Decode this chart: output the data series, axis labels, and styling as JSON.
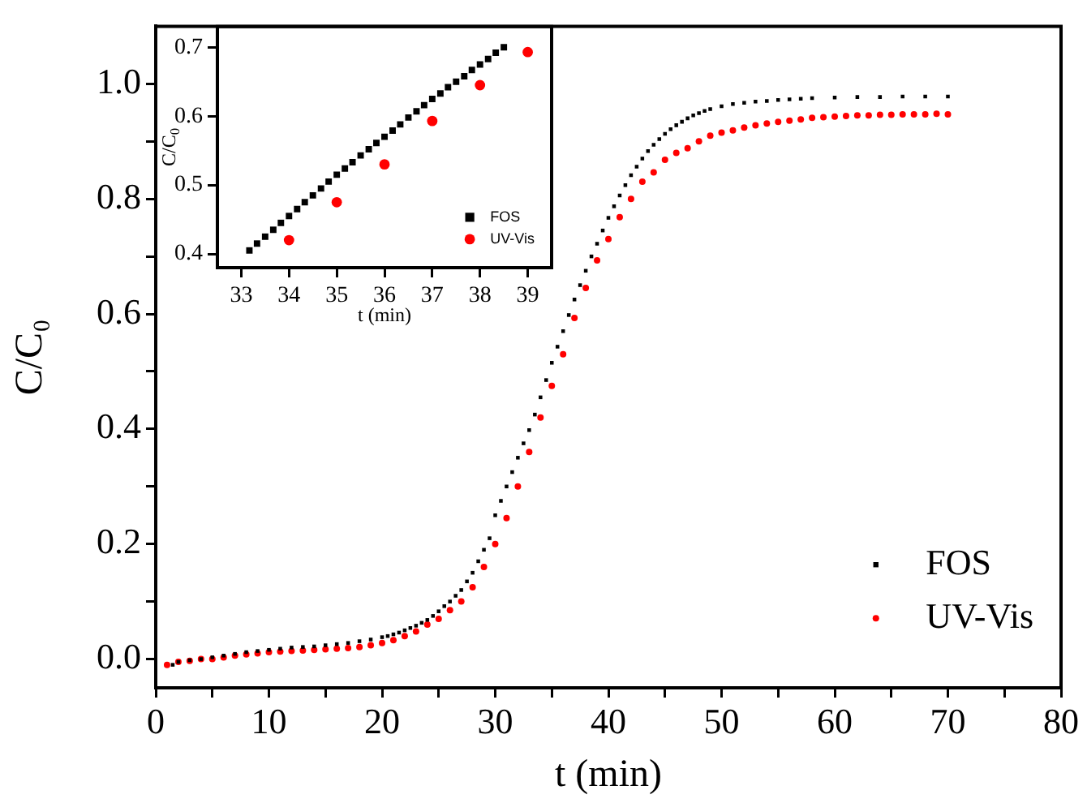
{
  "chart_data": [
    {
      "type": "scatter",
      "xlabel": "t (min)",
      "ylabel": "C/C₀",
      "xlim": [
        0,
        80
      ],
      "ylim": [
        -0.05,
        1.1
      ],
      "xticks": [
        0,
        {
          "value": 5,
          "label": null
        },
        10,
        {
          "value": 15,
          "label": null
        },
        20,
        {
          "value": 25,
          "label": null
        },
        30,
        {
          "value": 35,
          "label": null
        },
        40,
        {
          "value": 45,
          "label": null
        },
        50,
        {
          "value": 55,
          "label": null
        },
        60,
        {
          "value": 65,
          "label": null
        },
        70,
        {
          "value": 75,
          "label": null
        },
        80
      ],
      "yticks": [
        {
          "value": 0,
          "label": "0.0"
        },
        {
          "value": 0.1,
          "label": null
        },
        0.2,
        {
          "value": 0.3,
          "label": null
        },
        0.4,
        {
          "value": 0.5,
          "label": null
        },
        0.6,
        {
          "value": 0.7,
          "label": null
        },
        0.8,
        {
          "value": 0.9,
          "label": null
        },
        {
          "value": 1,
          "label": "1.0"
        }
      ],
      "grid": false,
      "legend": "bottom right",
      "series": [
        {
          "name": "FOS",
          "color": "#000000",
          "marker": "square",
          "x": [
            1.5,
            2,
            3,
            4,
            5,
            6,
            7,
            8,
            9,
            10,
            11,
            12,
            13,
            14,
            15,
            16,
            17,
            18,
            19,
            20,
            20.5,
            21,
            21.5,
            22,
            22.5,
            23,
            23.5,
            24,
            24.5,
            25,
            25.5,
            26,
            26.5,
            27,
            27.5,
            28,
            28.5,
            29,
            29.5,
            30,
            30.5,
            31,
            31.5,
            32,
            32.5,
            33,
            33.5,
            34,
            34.5,
            35,
            35.5,
            36,
            36.5,
            37,
            37.5,
            38,
            38.5,
            39,
            39.5,
            40,
            40.5,
            41,
            41.5,
            42,
            42.5,
            43,
            43.5,
            44,
            44.5,
            45,
            45.5,
            46,
            46.5,
            47,
            47.5,
            48,
            48.5,
            49,
            50,
            51,
            52,
            53,
            54,
            55,
            56,
            57,
            58,
            60,
            62,
            64,
            66,
            68,
            70
          ],
          "values": [
            -0.01,
            -0.005,
            -0.002,
            0,
            0.003,
            0.006,
            0.009,
            0.012,
            0.014,
            0.016,
            0.018,
            0.02,
            0.021,
            0.022,
            0.024,
            0.026,
            0.028,
            0.031,
            0.034,
            0.038,
            0.04,
            0.043,
            0.046,
            0.05,
            0.054,
            0.058,
            0.063,
            0.068,
            0.075,
            0.083,
            0.092,
            0.1,
            0.11,
            0.12,
            0.135,
            0.15,
            0.17,
            0.19,
            0.21,
            0.25,
            0.275,
            0.3,
            0.325,
            0.35,
            0.375,
            0.398,
            0.425,
            0.455,
            0.485,
            0.515,
            0.543,
            0.57,
            0.598,
            0.625,
            0.65,
            0.675,
            0.7,
            0.722,
            0.745,
            0.767,
            0.787,
            0.806,
            0.824,
            0.841,
            0.856,
            0.87,
            0.883,
            0.894,
            0.904,
            0.913,
            0.921,
            0.928,
            0.934,
            0.94,
            0.945,
            0.949,
            0.953,
            0.956,
            0.961,
            0.965,
            0.967,
            0.969,
            0.97,
            0.972,
            0.973,
            0.974,
            0.975,
            0.976,
            0.977,
            0.977,
            0.978,
            0.978,
            0.978
          ]
        },
        {
          "name": "UV-Vis",
          "color": "#ff0000",
          "marker": "circle",
          "x": [
            1,
            2,
            3,
            4,
            5,
            6,
            7,
            8,
            9,
            10,
            11,
            12,
            13,
            14,
            15,
            16,
            17,
            18,
            19,
            20,
            21,
            22,
            23,
            24,
            25,
            26,
            27,
            28,
            29,
            30,
            31,
            32,
            33,
            34,
            35,
            36,
            37,
            38,
            39,
            40,
            41,
            42,
            43,
            44,
            45,
            46,
            47,
            48,
            49,
            50,
            51,
            52,
            53,
            54,
            55,
            56,
            57,
            58,
            59,
            60,
            61,
            62,
            63,
            64,
            65,
            66,
            67,
            68,
            69,
            70
          ],
          "values": [
            -0.01,
            -0.005,
            -0.003,
            0,
            0,
            0.003,
            0.006,
            0.008,
            0.01,
            0.012,
            0.013,
            0.014,
            0.015,
            0.016,
            0.017,
            0.018,
            0.019,
            0.021,
            0.024,
            0.028,
            0.033,
            0.04,
            0.048,
            0.06,
            0.07,
            0.085,
            0.1,
            0.125,
            0.16,
            0.2,
            0.245,
            0.3,
            0.36,
            0.42,
            0.475,
            0.53,
            0.593,
            0.645,
            0.693,
            0.73,
            0.768,
            0.8,
            0.83,
            0.846,
            0.868,
            0.88,
            0.888,
            0.9,
            0.91,
            0.915,
            0.919,
            0.924,
            0.928,
            0.931,
            0.934,
            0.936,
            0.938,
            0.941,
            0.942,
            0.943,
            0.944,
            0.945,
            0.945,
            0.946,
            0.946,
            0.947,
            0.947,
            0.947,
            0.948,
            0.947
          ]
        }
      ]
    },
    {
      "type": "scatter",
      "xlabel": "t (min)",
      "ylabel": "C/C$_{0}$",
      "xlim": [
        32.5,
        39.5
      ],
      "ylim": [
        0.38,
        0.73
      ],
      "xticks": [
        33,
        34,
        35,
        36,
        37,
        38,
        39
      ],
      "yticks": [
        0.4,
        0.5,
        0.6,
        0.7
      ],
      "grid": false,
      "legend": "bottom right",
      "series": [
        {
          "name": "FOS",
          "color": "#000000",
          "marker": "square",
          "x": [
            33.17,
            33.33,
            33.5,
            33.67,
            33.83,
            34,
            34.17,
            34.33,
            34.5,
            34.67,
            34.83,
            35,
            35.17,
            35.33,
            35.5,
            35.67,
            35.83,
            36,
            36.17,
            36.33,
            36.5,
            36.67,
            36.83,
            37,
            37.17,
            37.33,
            37.5,
            37.67,
            37.83,
            38,
            38.17,
            38.33,
            38.5
          ],
          "values": [
            0.405,
            0.415,
            0.425,
            0.435,
            0.445,
            0.455,
            0.465,
            0.475,
            0.485,
            0.495,
            0.505,
            0.515,
            0.524,
            0.533,
            0.543,
            0.552,
            0.561,
            0.57,
            0.579,
            0.588,
            0.598,
            0.607,
            0.616,
            0.625,
            0.633,
            0.642,
            0.65,
            0.658,
            0.667,
            0.675,
            0.683,
            0.692,
            0.7
          ]
        },
        {
          "name": "UV-Vis",
          "color": "#ff0000",
          "marker": "circle",
          "x": [
            34,
            35,
            36,
            37,
            38,
            39
          ],
          "values": [
            0.42,
            0.475,
            0.53,
            0.593,
            0.645,
            0.693
          ]
        }
      ]
    }
  ]
}
